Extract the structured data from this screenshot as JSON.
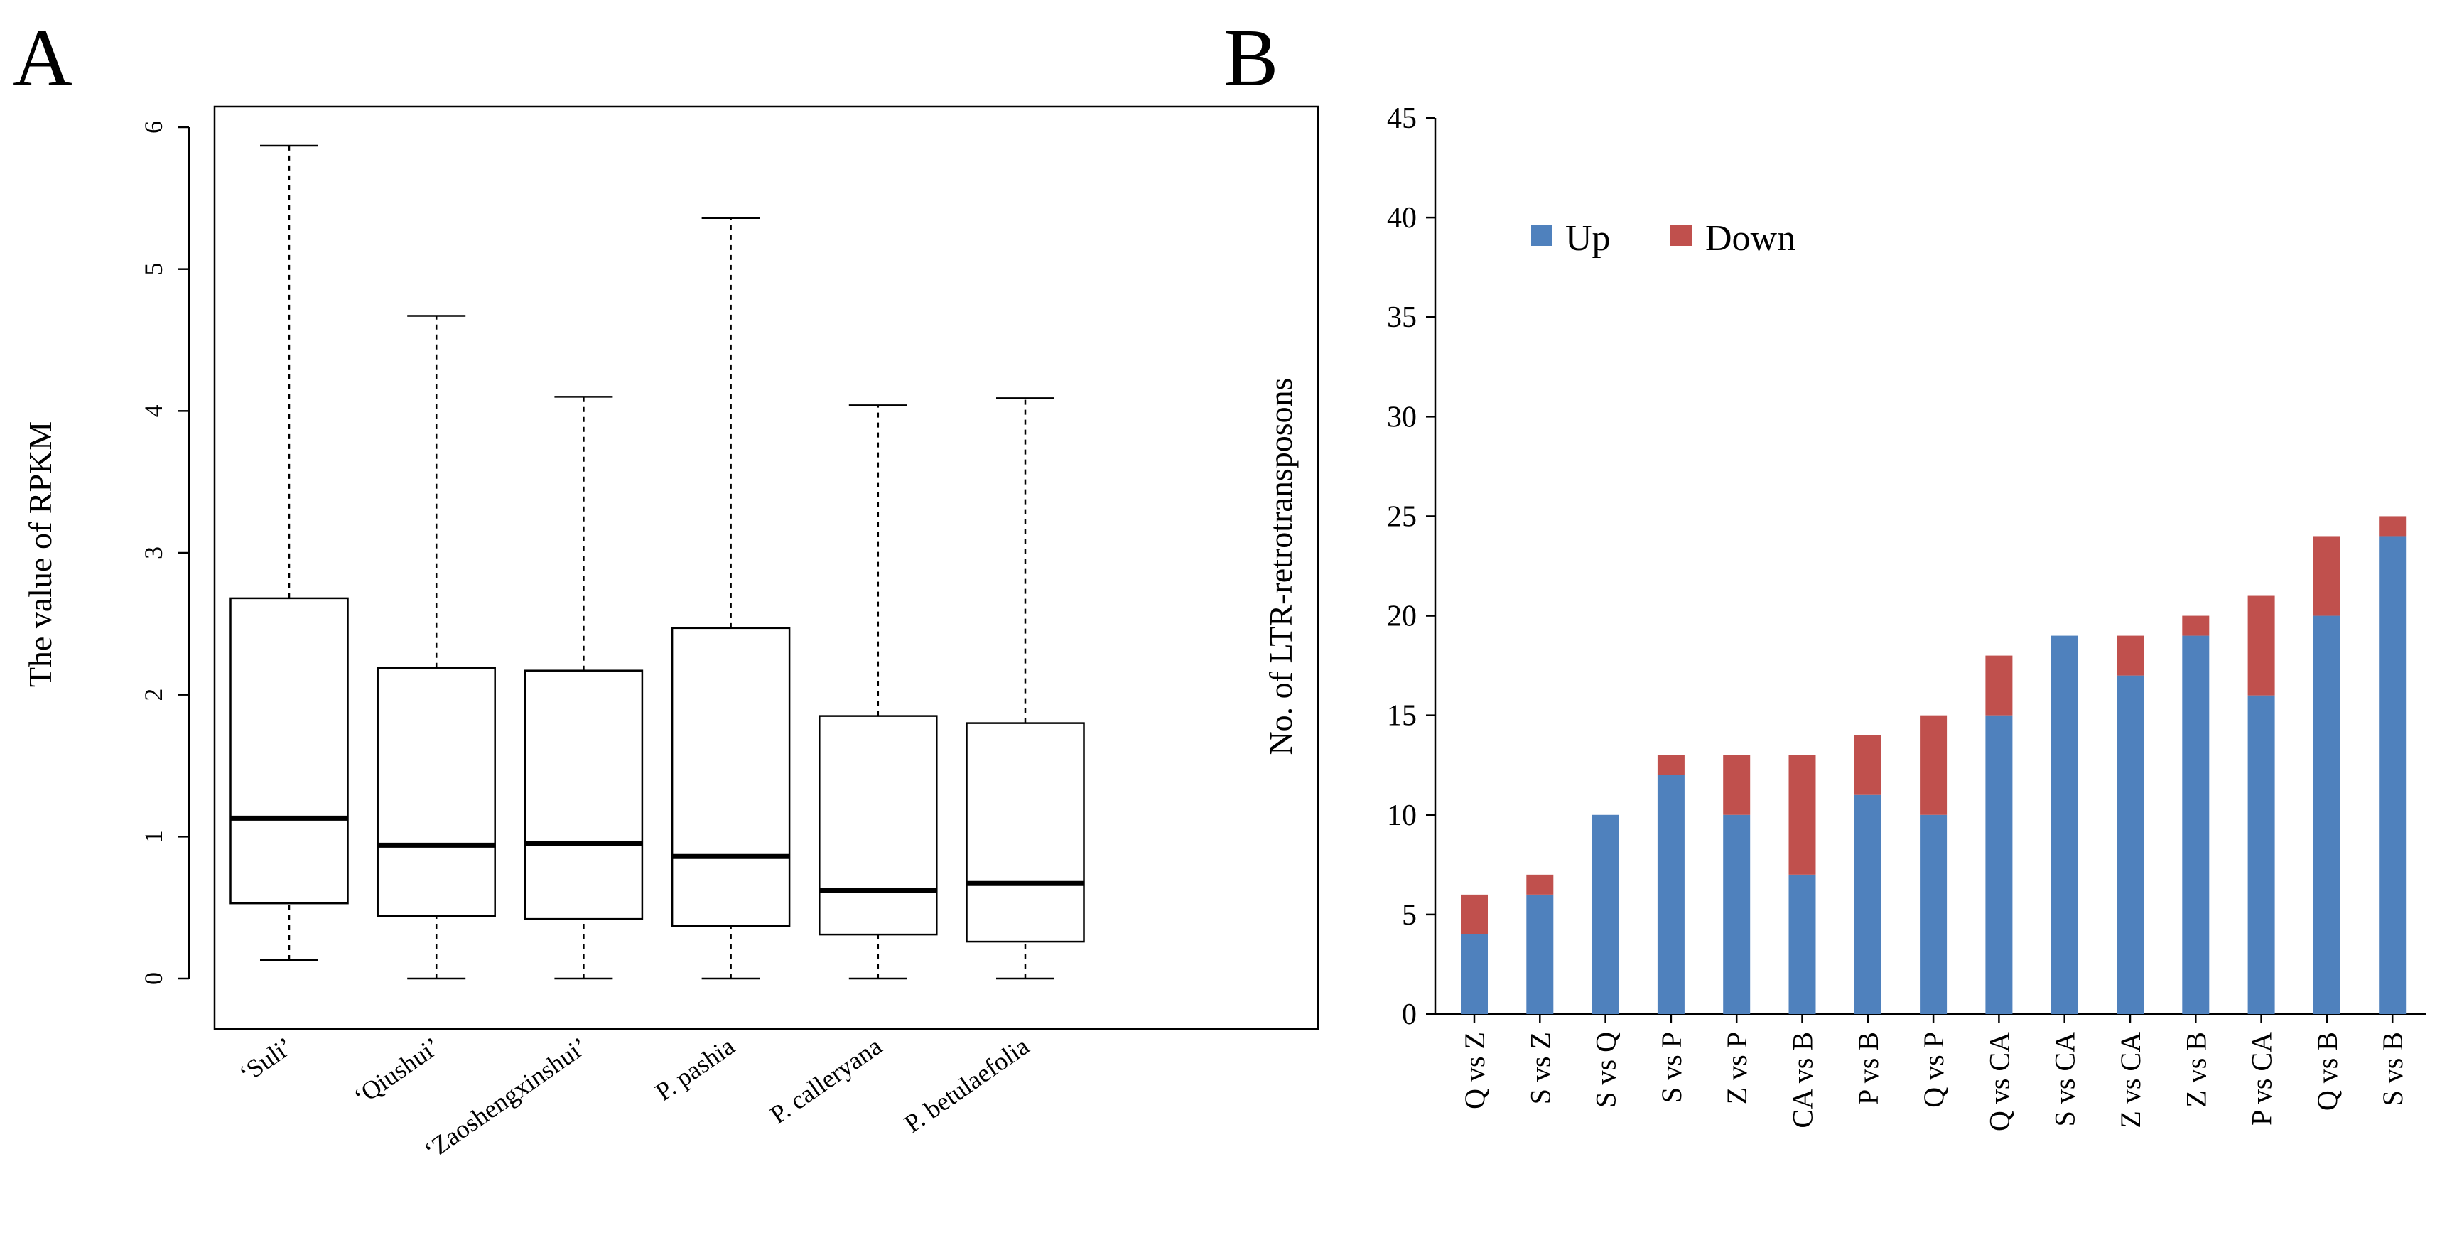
{
  "panels": {
    "A": {
      "label": "A"
    },
    "B": {
      "label": "B"
    }
  },
  "chart_data": [
    {
      "type": "box",
      "panel": "A",
      "title": "",
      "xlabel": "",
      "ylabel": "The value of RPKM",
      "ylim": [
        0,
        6
      ],
      "yticks": [
        0,
        1,
        2,
        3,
        4,
        5,
        6
      ],
      "categories": [
        "‘Suli’",
        "‘Qiushui’",
        "‘Zaoshengxinshui’",
        "P. pashia",
        "P. calleryana",
        "P. betulaefolia"
      ],
      "boxes": [
        {
          "whisker_low": 0.13,
          "q1": 0.53,
          "median": 1.13,
          "q3": 2.68,
          "whisker_high": 5.87
        },
        {
          "whisker_low": 0.0,
          "q1": 0.44,
          "median": 0.94,
          "q3": 2.19,
          "whisker_high": 4.67
        },
        {
          "whisker_low": 0.0,
          "q1": 0.42,
          "median": 0.95,
          "q3": 2.17,
          "whisker_high": 4.1
        },
        {
          "whisker_low": 0.0,
          "q1": 0.37,
          "median": 0.86,
          "q3": 2.47,
          "whisker_high": 5.36
        },
        {
          "whisker_low": 0.0,
          "q1": 0.31,
          "median": 0.62,
          "q3": 1.85,
          "whisker_high": 4.04
        },
        {
          "whisker_low": 0.0,
          "q1": 0.26,
          "median": 0.67,
          "q3": 1.8,
          "whisker_high": 4.09
        }
      ],
      "colors": {
        "stroke": "#000000",
        "fill": "#ffffff"
      }
    },
    {
      "type": "stacked-bar",
      "panel": "B",
      "title": "",
      "xlabel": "",
      "ylabel": "No. of LTR-retrotransposons",
      "ylim": [
        0,
        45
      ],
      "yticks": [
        0,
        5,
        10,
        15,
        20,
        25,
        30,
        35,
        40,
        45
      ],
      "categories": [
        "Q vs Z",
        "S vs Z",
        "S vs Q",
        "S vs P",
        "Z vs P",
        "CA vs B",
        "P vs B",
        "Q vs P",
        "Q vs CA",
        "S vs CA",
        "Z vs CA",
        "Z vs B",
        "P vs CA",
        "Q vs B",
        "S vs B"
      ],
      "series": [
        {
          "name": "Up",
          "color": "#4f81bd",
          "values": [
            4,
            6,
            10,
            12,
            10,
            7,
            11,
            10,
            15,
            19,
            17,
            19,
            16,
            20,
            24
          ]
        },
        {
          "name": "Down",
          "color": "#c0504d",
          "values": [
            2,
            1,
            0,
            1,
            3,
            6,
            3,
            5,
            3,
            0,
            2,
            1,
            5,
            4,
            1
          ]
        }
      ],
      "legend": {
        "position": "top-left",
        "orientation": "horizontal"
      }
    }
  ]
}
